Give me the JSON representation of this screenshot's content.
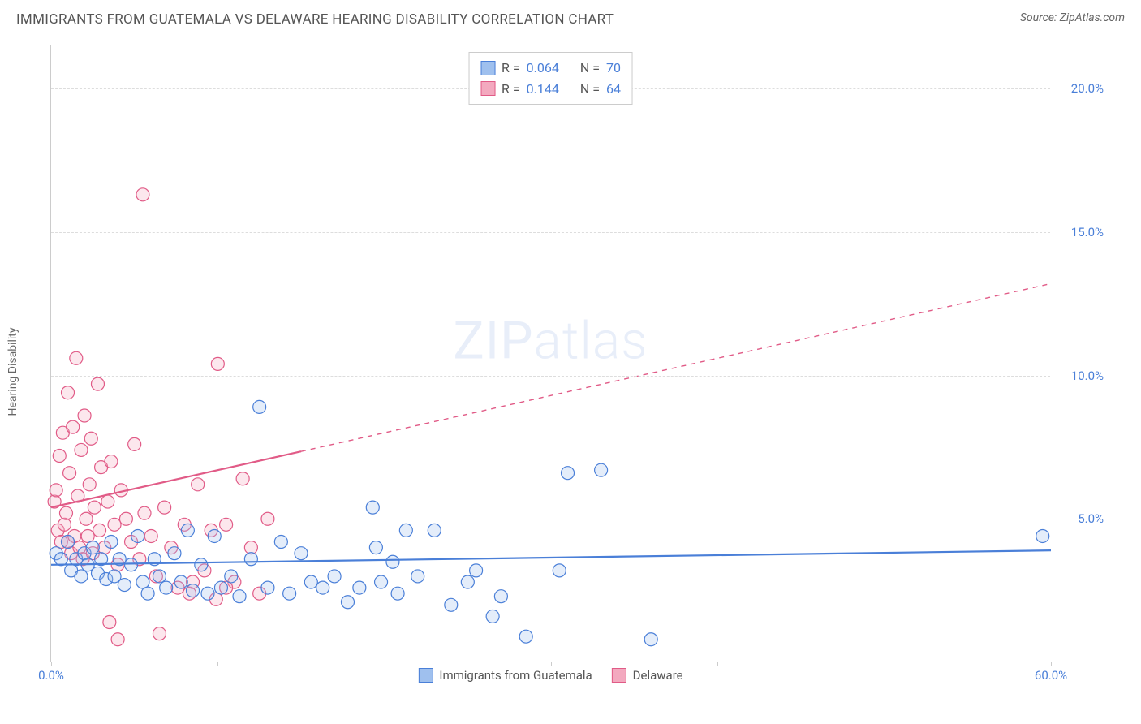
{
  "header": {
    "title": "IMMIGRANTS FROM GUATEMALA VS DELAWARE HEARING DISABILITY CORRELATION CHART",
    "source": "Source: ZipAtlas.com"
  },
  "watermark": {
    "zip": "ZIP",
    "atlas": "atlas"
  },
  "chart": {
    "type": "scatter",
    "y_axis_label": "Hearing Disability",
    "xlim": [
      0,
      60
    ],
    "ylim": [
      0,
      21.5
    ],
    "x_ticks": [
      0,
      10,
      20,
      30,
      40,
      50,
      60
    ],
    "x_tick_labels_shown": {
      "0": "0.0%",
      "60": "60.0%"
    },
    "y_ticks": [
      5,
      10,
      15,
      20
    ],
    "y_tick_labels": [
      "5.0%",
      "10.0%",
      "15.0%",
      "20.0%"
    ],
    "grid_color": "#dddddd",
    "axis_color": "#cccccc",
    "background_color": "#ffffff",
    "label_fontsize": 14,
    "tick_fontsize": 15,
    "tick_label_color": "#4a7fd8",
    "marker_radius": 8,
    "marker_stroke_width": 1.2,
    "marker_fill_opacity": 0.28,
    "series": [
      {
        "id": "guatemala",
        "label": "Immigrants from Guatemala",
        "color_stroke": "#4a7fd8",
        "color_fill": "#9fc0ee",
        "r_value": "0.064",
        "n_value": "70",
        "trend": {
          "x1": 0,
          "y1": 3.4,
          "x2": 60,
          "y2": 3.9,
          "solid_until_x": 60
        },
        "points": [
          [
            0.3,
            3.8
          ],
          [
            0.6,
            3.6
          ],
          [
            1.0,
            4.2
          ],
          [
            1.2,
            3.2
          ],
          [
            1.5,
            3.6
          ],
          [
            1.8,
            3.0
          ],
          [
            2.0,
            3.8
          ],
          [
            2.2,
            3.4
          ],
          [
            2.5,
            4.0
          ],
          [
            2.8,
            3.1
          ],
          [
            3.0,
            3.6
          ],
          [
            3.3,
            2.9
          ],
          [
            3.6,
            4.2
          ],
          [
            3.8,
            3.0
          ],
          [
            4.1,
            3.6
          ],
          [
            4.4,
            2.7
          ],
          [
            4.8,
            3.4
          ],
          [
            5.2,
            4.4
          ],
          [
            5.5,
            2.8
          ],
          [
            5.8,
            2.4
          ],
          [
            6.2,
            3.6
          ],
          [
            6.5,
            3.0
          ],
          [
            6.9,
            2.6
          ],
          [
            7.4,
            3.8
          ],
          [
            7.8,
            2.8
          ],
          [
            8.2,
            4.6
          ],
          [
            8.5,
            2.5
          ],
          [
            9.0,
            3.4
          ],
          [
            9.4,
            2.4
          ],
          [
            9.8,
            4.4
          ],
          [
            10.2,
            2.6
          ],
          [
            10.8,
            3.0
          ],
          [
            11.3,
            2.3
          ],
          [
            12.0,
            3.6
          ],
          [
            12.5,
            8.9
          ],
          [
            13.0,
            2.6
          ],
          [
            13.8,
            4.2
          ],
          [
            14.3,
            2.4
          ],
          [
            15.0,
            3.8
          ],
          [
            15.6,
            2.8
          ],
          [
            16.3,
            2.6
          ],
          [
            17.0,
            3.0
          ],
          [
            17.8,
            2.1
          ],
          [
            18.5,
            2.6
          ],
          [
            19.3,
            5.4
          ],
          [
            19.5,
            4.0
          ],
          [
            19.8,
            2.8
          ],
          [
            20.5,
            3.5
          ],
          [
            20.8,
            2.4
          ],
          [
            21.3,
            4.6
          ],
          [
            22.0,
            3.0
          ],
          [
            23.0,
            4.6
          ],
          [
            24.0,
            2.0
          ],
          [
            25.0,
            2.8
          ],
          [
            25.5,
            3.2
          ],
          [
            26.5,
            1.6
          ],
          [
            27.0,
            2.3
          ],
          [
            28.5,
            0.9
          ],
          [
            30.5,
            3.2
          ],
          [
            31.0,
            6.6
          ],
          [
            33.0,
            6.7
          ],
          [
            36.0,
            0.8
          ],
          [
            59.5,
            4.4
          ]
        ]
      },
      {
        "id": "delaware",
        "label": "Delaware",
        "color_stroke": "#e15b87",
        "color_fill": "#f3a9bf",
        "r_value": "0.144",
        "n_value": "64",
        "trend": {
          "x1": 0,
          "y1": 5.4,
          "x2": 60,
          "y2": 13.2,
          "solid_until_x": 15
        },
        "points": [
          [
            0.2,
            5.6
          ],
          [
            0.3,
            6.0
          ],
          [
            0.4,
            4.6
          ],
          [
            0.5,
            7.2
          ],
          [
            0.6,
            4.2
          ],
          [
            0.7,
            8.0
          ],
          [
            0.8,
            4.8
          ],
          [
            0.9,
            5.2
          ],
          [
            1.0,
            9.4
          ],
          [
            1.0,
            4.2
          ],
          [
            1.1,
            6.6
          ],
          [
            1.2,
            3.8
          ],
          [
            1.3,
            8.2
          ],
          [
            1.4,
            4.4
          ],
          [
            1.5,
            10.6
          ],
          [
            1.6,
            5.8
          ],
          [
            1.7,
            4.0
          ],
          [
            1.8,
            7.4
          ],
          [
            1.9,
            3.6
          ],
          [
            2.0,
            8.6
          ],
          [
            2.1,
            5.0
          ],
          [
            2.2,
            4.4
          ],
          [
            2.3,
            6.2
          ],
          [
            2.4,
            7.8
          ],
          [
            2.5,
            3.8
          ],
          [
            2.6,
            5.4
          ],
          [
            2.8,
            9.7
          ],
          [
            2.9,
            4.6
          ],
          [
            3.0,
            6.8
          ],
          [
            3.2,
            4.0
          ],
          [
            3.4,
            5.6
          ],
          [
            3.6,
            7.0
          ],
          [
            3.8,
            4.8
          ],
          [
            4.0,
            3.4
          ],
          [
            4.2,
            6.0
          ],
          [
            4.5,
            5.0
          ],
          [
            4.8,
            4.2
          ],
          [
            5.0,
            7.6
          ],
          [
            5.3,
            3.6
          ],
          [
            5.6,
            5.2
          ],
          [
            5.5,
            16.3
          ],
          [
            6.0,
            4.4
          ],
          [
            6.3,
            3.0
          ],
          [
            6.8,
            5.4
          ],
          [
            7.2,
            4.0
          ],
          [
            7.6,
            2.6
          ],
          [
            8.0,
            4.8
          ],
          [
            8.3,
            2.4
          ],
          [
            8.8,
            6.2
          ],
          [
            9.2,
            3.2
          ],
          [
            9.6,
            4.6
          ],
          [
            9.9,
            2.2
          ],
          [
            10.0,
            10.4
          ],
          [
            10.5,
            4.8
          ],
          [
            11.0,
            2.8
          ],
          [
            11.5,
            6.4
          ],
          [
            12.0,
            4.0
          ],
          [
            12.5,
            2.4
          ],
          [
            13.0,
            5.0
          ],
          [
            4.0,
            0.8
          ],
          [
            6.5,
            1.0
          ],
          [
            8.5,
            2.8
          ],
          [
            10.5,
            2.6
          ],
          [
            3.5,
            1.4
          ]
        ]
      }
    ],
    "legend_top": {
      "r_label": "R =",
      "n_label": "N ="
    },
    "legend_bottom_labels": [
      "Immigrants from Guatemala",
      "Delaware"
    ]
  }
}
